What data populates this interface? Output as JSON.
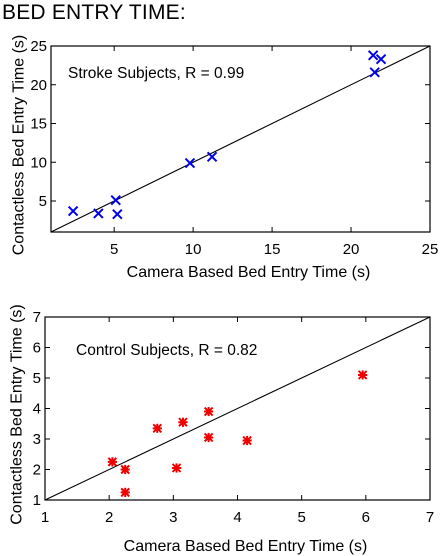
{
  "header": {
    "title": "BED ENTRY TIME:"
  },
  "chart_data": [
    {
      "type": "scatter",
      "annotation": "Stroke Subjects, R = 0.99",
      "xlabel": "Camera Based Bed Entry Time (s)",
      "ylabel": "Contactless Bed Entry Time (s)",
      "xlim": [
        1,
        25
      ],
      "ylim": [
        1,
        25
      ],
      "xticks": [
        5,
        10,
        15,
        20,
        25
      ],
      "yticks": [
        5,
        10,
        15,
        20,
        25
      ],
      "marker": "x",
      "color": "#0000ee",
      "reference_line": "y = x",
      "grid": false,
      "points": [
        {
          "x": 2.4,
          "y": 3.7
        },
        {
          "x": 4.0,
          "y": 3.4
        },
        {
          "x": 5.1,
          "y": 5.1
        },
        {
          "x": 5.2,
          "y": 3.3
        },
        {
          "x": 9.8,
          "y": 9.9
        },
        {
          "x": 11.2,
          "y": 10.7
        },
        {
          "x": 21.4,
          "y": 23.8
        },
        {
          "x": 21.9,
          "y": 23.3
        },
        {
          "x": 21.5,
          "y": 21.6
        }
      ]
    },
    {
      "type": "scatter",
      "annotation": "Control Subjects, R = 0.82",
      "xlabel": "Camera Based Bed Entry Time (s)",
      "ylabel": "Contactless Bed Entry Time (s)",
      "xlim": [
        1,
        7
      ],
      "ylim": [
        1,
        7
      ],
      "xticks": [
        1,
        2,
        3,
        4,
        5,
        6,
        7
      ],
      "yticks": [
        1,
        2,
        3,
        4,
        5,
        6,
        7
      ],
      "marker": "asterisk",
      "color": "#ee0000",
      "reference_line": "y = x",
      "grid": false,
      "points": [
        {
          "x": 2.05,
          "y": 2.25
        },
        {
          "x": 2.25,
          "y": 2.0
        },
        {
          "x": 2.25,
          "y": 1.25
        },
        {
          "x": 2.75,
          "y": 3.35
        },
        {
          "x": 3.05,
          "y": 2.05
        },
        {
          "x": 3.15,
          "y": 3.55
        },
        {
          "x": 3.55,
          "y": 3.9
        },
        {
          "x": 3.55,
          "y": 3.05
        },
        {
          "x": 4.15,
          "y": 2.95
        },
        {
          "x": 5.95,
          "y": 5.1
        }
      ]
    }
  ]
}
